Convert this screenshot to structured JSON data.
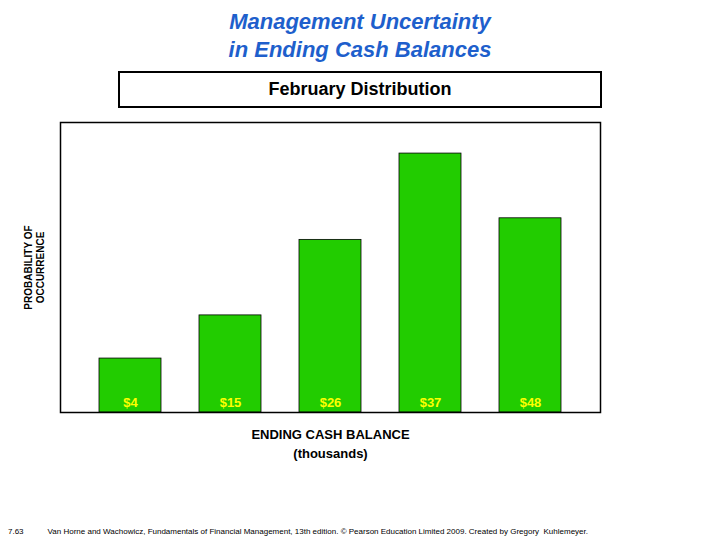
{
  "chart_data": {
    "type": "bar",
    "title": "Management Uncertainty\nin Ending Cash Balances",
    "subtitle": "February Distribution",
    "xlabel": "ENDING CASH BALANCE\n(thousands)",
    "ylabel": "PROBABILITY OF\nOCCURRENCE",
    "categories": [
      "$4",
      "$15",
      "$26",
      "$37",
      "$48"
    ],
    "values": [
      1.0,
      1.8,
      3.2,
      4.8,
      3.6
    ],
    "color": "#22CC00",
    "ylim": [
      0,
      5.376
    ],
    "yticks": [],
    "tick_labels": false,
    "grid": false,
    "data_labels": false,
    "annotations": [
      "7.63",
      "Van Horne and Wachowicz, Fundamentals of Financial Management, 13th edition. © Pearson Education Limited 2009. Created by Gregory  Kuhlemeyer."
    ]
  }
}
